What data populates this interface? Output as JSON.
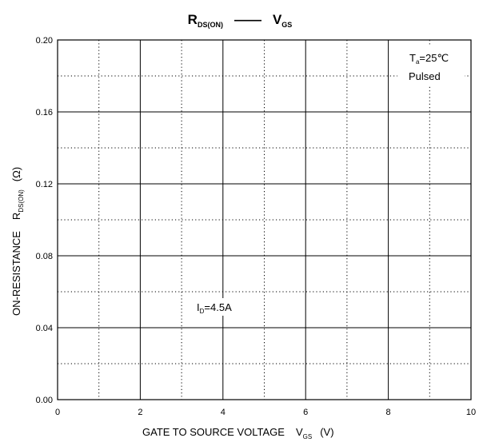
{
  "chart_data": {
    "type": "line",
    "title": {
      "left_main": "R",
      "left_sub": "DS(ON)",
      "dash": "——",
      "right_main": "V",
      "right_sub": "GS"
    },
    "xlabel": {
      "main": "GATE TO SOURCE VOLTAGE",
      "sym": "V",
      "sym_sub": "GS",
      "unit": "(V)"
    },
    "ylabel": {
      "main": "ON-RESISTANCE",
      "sym": "R",
      "sym_sub": "DS(ON)",
      "unit": "(Ω)"
    },
    "xlim": [
      0,
      10
    ],
    "ylim": [
      0,
      0.2
    ],
    "x_ticks": [
      "0",
      "2",
      "4",
      "6",
      "8",
      "10"
    ],
    "y_ticks": [
      "0.00",
      "0.04",
      "0.08",
      "0.12",
      "0.16",
      "0.20"
    ],
    "x_major": [
      0,
      2,
      4,
      6,
      8,
      10
    ],
    "x_minor": [
      1,
      3,
      5,
      7,
      9
    ],
    "y_major": [
      0,
      0.04,
      0.08,
      0.12,
      0.16,
      0.2
    ],
    "y_minor": [
      0.02,
      0.06,
      0.1,
      0.14,
      0.18
    ],
    "grid": true,
    "annotations": {
      "temp": {
        "main": "T",
        "sub": "a",
        "rest": "=25℃"
      },
      "mode": "Pulsed",
      "current": {
        "main": "I",
        "sub": "D",
        "rest": "=4.5A"
      }
    },
    "series": []
  }
}
